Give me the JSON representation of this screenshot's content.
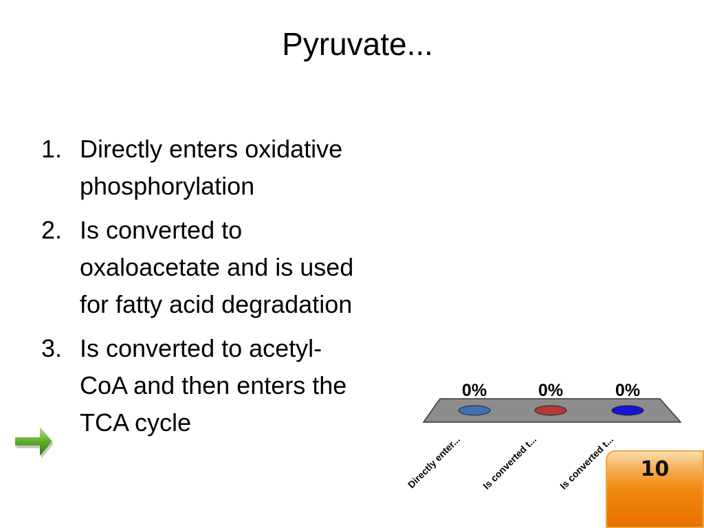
{
  "slide": {
    "title": "Pyruvate...",
    "answers": [
      {
        "number": "1.",
        "text": "Directly enters oxidative phosphorylation"
      },
      {
        "number": "2.",
        "text": "Is converted to oxaloacetate and is used for fatty acid degradation"
      },
      {
        "number": "3.",
        "text": "Is converted to acetyl-CoA and then enters the TCA cycle"
      }
    ],
    "correct_answer_indicator": "arrow-right-icon"
  },
  "chart_data": {
    "type": "bar",
    "categories": [
      "Directly enter...",
      "Is converted t...",
      "Is converted t..."
    ],
    "values": [
      0,
      0,
      0
    ],
    "value_labels": [
      "0%",
      "0%",
      "0%"
    ],
    "ylim": [
      0,
      100
    ],
    "colors": [
      "#3f6fae",
      "#b23a3a",
      "#1515d4"
    ],
    "floor_color": "#8c8c8c"
  },
  "timer": {
    "value": "10"
  }
}
